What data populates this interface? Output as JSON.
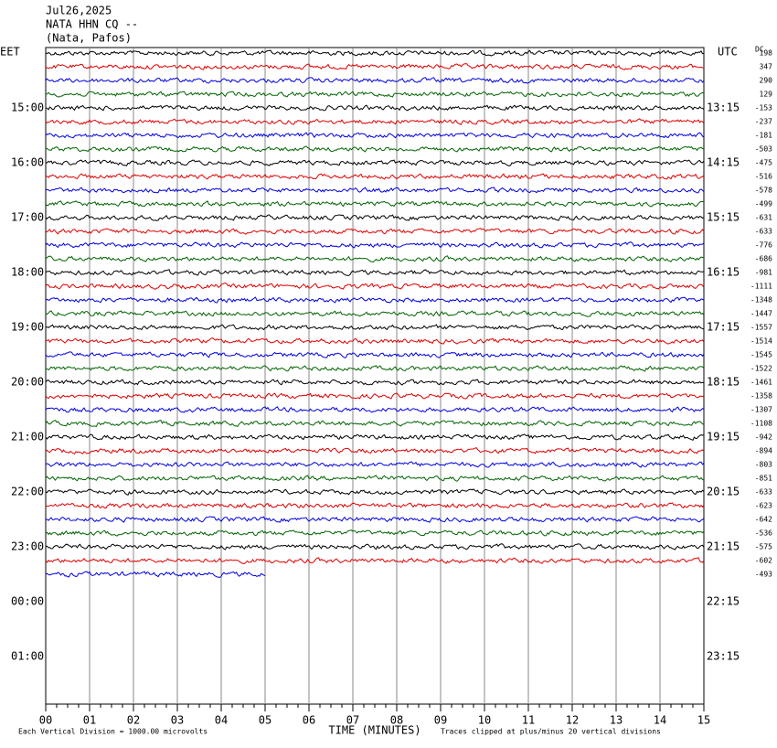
{
  "header": [
    "Jul26,2025",
    "NATA HHN CQ --",
    "(Nata, Pafos)"
  ],
  "left_zone": "EET",
  "right_zone": "UTC",
  "dc_heading": "DC",
  "left_times": [
    "15:00",
    "16:00",
    "17:00",
    "18:00",
    "19:00",
    "20:00",
    "21:00",
    "22:00",
    "23:00",
    "00:00",
    "01:00"
  ],
  "right_times": [
    "13:15",
    "14:15",
    "15:15",
    "16:15",
    "17:15",
    "18:15",
    "19:15",
    "20:15",
    "21:15",
    "22:15",
    "23:15"
  ],
  "dc_offsets": [
    "198",
    "347",
    "290",
    "129",
    "-153",
    "-237",
    "-181",
    "-503",
    "-475",
    "-516",
    "-578",
    "-499",
    "-631",
    "-633",
    "-776",
    "-686",
    "-981",
    "-1111",
    "-1348",
    "-1447",
    "-1557",
    "-1514",
    "-1545",
    "-1522",
    "-1461",
    "-1358",
    "-1307",
    "-1108",
    "-942",
    "-894",
    "-803",
    "-851",
    "-633",
    "-623",
    "-642",
    "-536",
    "-575",
    "-602",
    "-493"
  ],
  "x_ticks": [
    "00",
    "01",
    "02",
    "03",
    "04",
    "05",
    "06",
    "07",
    "08",
    "09",
    "10",
    "11",
    "12",
    "13",
    "14",
    "15"
  ],
  "x_label": "TIME (MINUTES)",
  "footer_left": "Each Vertical Division = 1000.00 microvolts",
  "footer_right": "Traces clipped at plus/minus 20 vertical divisions"
}
